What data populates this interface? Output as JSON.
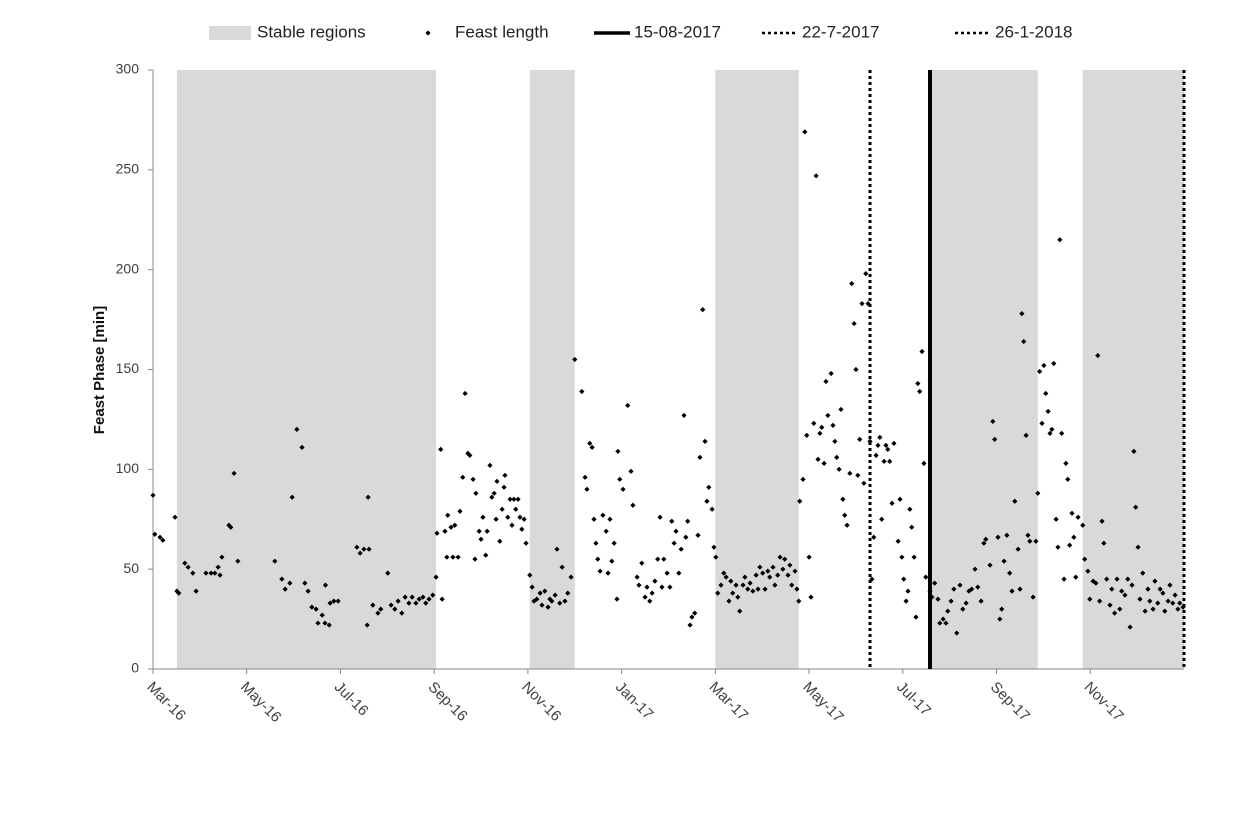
{
  "chart_data": {
    "type": "scatter",
    "y_label": "Feast Phase [min]",
    "ylim": [
      0,
      300
    ],
    "yticks": [
      0,
      50,
      100,
      150,
      200,
      250,
      300
    ],
    "xlim": [
      0,
      22
    ],
    "xticks": [
      {
        "value": 0,
        "label": "Mar-16"
      },
      {
        "value": 2,
        "label": "May-16"
      },
      {
        "value": 4,
        "label": "Jul-16"
      },
      {
        "value": 6,
        "label": "Sep-16"
      },
      {
        "value": 8,
        "label": "Nov-16"
      },
      {
        "value": 10,
        "label": "Jan-17"
      },
      {
        "value": 12,
        "label": "Mar-17"
      },
      {
        "value": 14,
        "label": "May-17"
      },
      {
        "value": 16,
        "label": "Jul-17"
      },
      {
        "value": 18,
        "label": "Sep-17"
      },
      {
        "value": 20,
        "label": "Nov-17"
      }
    ],
    "regions": {
      "name": "Stable regions",
      "color": "#d9d9d9",
      "ranges": [
        [
          0.51,
          6.04
        ],
        [
          8.04,
          9.0
        ],
        [
          12.0,
          13.78
        ],
        [
          16.58,
          18.88
        ],
        [
          19.84,
          22.0
        ]
      ]
    },
    "vlines": [
      {
        "name": "15-08-2017",
        "x": 16.58,
        "style": "solid",
        "color": "#000000"
      },
      {
        "name": "22-7-2017",
        "x": 15.3,
        "style": "dotted",
        "color": "#000000"
      },
      {
        "name": "26-1-2018",
        "x": 22,
        "style": "dotted",
        "color": "#000000"
      }
    ],
    "series": [
      {
        "name": "Feast length",
        "color": "#000000",
        "x": [
          0.0,
          0.04,
          0.15,
          0.21,
          0.47,
          0.51,
          0.55,
          0.68,
          0.75,
          0.85,
          0.92,
          1.13,
          1.24,
          1.32,
          1.39,
          1.43,
          1.47,
          1.62,
          1.66,
          1.73,
          1.81,
          2.6,
          2.75,
          2.82,
          2.92,
          2.97,
          3.07,
          3.18,
          3.24,
          3.31,
          3.39,
          3.48,
          3.52,
          3.61,
          3.67,
          3.68,
          3.76,
          3.78,
          3.86,
          3.95,
          4.35,
          4.42,
          4.5,
          4.59,
          4.61,
          4.57,
          4.69,
          4.8,
          4.86,
          5.01,
          5.08,
          5.16,
          5.23,
          5.31,
          5.38,
          5.46,
          5.53,
          5.61,
          5.68,
          5.76,
          5.82,
          5.89,
          5.97,
          6.04,
          6.06,
          6.14,
          6.17,
          6.23,
          6.27,
          6.29,
          6.36,
          6.4,
          6.44,
          6.51,
          6.55,
          6.61,
          6.66,
          6.72,
          6.76,
          6.83,
          6.87,
          6.89,
          6.96,
          7.0,
          7.04,
          7.1,
          7.13,
          7.19,
          7.23,
          7.28,
          7.32,
          7.34,
          7.4,
          7.45,
          7.49,
          7.51,
          7.57,
          7.62,
          7.66,
          7.7,
          7.74,
          7.79,
          7.83,
          7.87,
          7.92,
          7.96,
          8.04,
          8.09,
          8.13,
          8.19,
          8.26,
          8.3,
          8.36,
          8.43,
          8.47,
          8.51,
          8.58,
          8.62,
          8.68,
          8.73,
          8.79,
          8.85,
          8.92,
          9.0,
          9.15,
          9.22,
          9.26,
          9.32,
          9.37,
          9.41,
          9.45,
          9.49,
          9.54,
          9.6,
          9.67,
          9.71,
          9.75,
          9.79,
          9.84,
          9.9,
          9.92,
          9.96,
          10.03,
          10.13,
          10.2,
          10.24,
          10.33,
          10.37,
          10.43,
          10.5,
          10.54,
          10.6,
          10.65,
          10.71,
          10.77,
          10.82,
          10.86,
          10.9,
          10.97,
          11.03,
          11.07,
          11.12,
          11.16,
          11.22,
          11.27,
          11.33,
          11.37,
          11.41,
          11.46,
          11.5,
          11.56,
          11.63,
          11.67,
          11.73,
          11.78,
          11.82,
          11.86,
          11.93,
          11.97,
          12.01,
          12.05,
          12.12,
          12.18,
          12.23,
          12.29,
          12.33,
          12.37,
          12.44,
          12.48,
          12.52,
          12.59,
          12.63,
          12.69,
          12.74,
          12.8,
          12.87,
          12.91,
          12.95,
          13.01,
          13.06,
          13.12,
          13.16,
          13.23,
          13.27,
          13.33,
          13.38,
          13.44,
          13.48,
          13.55,
          13.59,
          13.63,
          13.7,
          13.74,
          13.78,
          13.8,
          13.87,
          13.91,
          13.95,
          14.0,
          14.04,
          14.1,
          14.15,
          14.19,
          14.23,
          14.27,
          14.32,
          14.36,
          14.4,
          14.47,
          14.51,
          14.55,
          14.59,
          14.64,
          14.68,
          14.72,
          14.76,
          14.81,
          14.87,
          14.91,
          14.96,
          15.0,
          15.04,
          15.08,
          15.13,
          15.17,
          15.21,
          15.26,
          15.3,
          15.34,
          15.38,
          15.43,
          15.47,
          15.51,
          15.55,
          15.6,
          15.64,
          15.68,
          15.72,
          15.77,
          15.81,
          15.9,
          15.94,
          15.98,
          16.02,
          16.07,
          16.11,
          16.15,
          16.19,
          16.24,
          16.28,
          16.32,
          16.36,
          16.41,
          16.45,
          16.49,
          16.58,
          16.62,
          16.68,
          16.75,
          16.79,
          16.86,
          16.92,
          16.96,
          17.03,
          17.09,
          17.15,
          17.22,
          17.28,
          17.35,
          17.41,
          17.47,
          17.54,
          17.6,
          17.67,
          17.73,
          17.77,
          17.86,
          17.92,
          17.96,
          18.03,
          18.07,
          18.11,
          18.16,
          18.22,
          18.28,
          18.33,
          18.39,
          18.46,
          18.5,
          18.54,
          18.58,
          18.63,
          18.67,
          18.71,
          18.78,
          18.84,
          18.88,
          18.92,
          18.97,
          19.01,
          19.05,
          19.1,
          19.14,
          19.18,
          19.22,
          19.27,
          19.31,
          19.35,
          19.39,
          19.44,
          19.48,
          19.52,
          19.56,
          19.61,
          19.65,
          19.69,
          19.74,
          19.84,
          19.88,
          19.95,
          19.99,
          20.06,
          20.12,
          20.16,
          20.2,
          20.25,
          20.29,
          20.35,
          20.42,
          20.46,
          20.52,
          20.57,
          20.63,
          20.67,
          20.74,
          20.8,
          20.85,
          20.89,
          20.93,
          20.97,
          21.02,
          21.06,
          21.12,
          21.17,
          21.23,
          21.27,
          21.34,
          21.38,
          21.44,
          21.49,
          21.55,
          21.59,
          21.66,
          21.7,
          21.76,
          21.81,
          21.87,
          21.91,
          21.98
        ],
        "values": [
          87,
          67.5,
          66,
          64.5,
          76,
          39,
          38,
          53,
          51,
          48,
          39,
          48,
          48,
          48,
          51,
          47,
          56,
          72,
          71,
          98,
          54,
          54,
          45,
          40,
          43,
          86,
          120,
          111,
          43,
          39,
          31,
          30,
          23,
          27,
          23,
          42,
          22,
          33,
          34,
          34,
          61,
          58,
          60,
          86,
          60,
          22,
          32,
          28,
          30,
          48,
          32,
          30,
          34,
          28,
          36,
          33,
          36,
          33,
          35,
          36,
          33,
          35,
          37,
          46,
          68,
          110,
          35,
          69,
          56,
          77,
          71,
          56,
          72,
          56,
          79,
          96,
          138,
          108,
          107,
          95,
          55,
          88,
          69,
          65,
          76,
          57,
          69,
          102,
          86,
          88,
          75,
          94,
          64,
          80,
          91,
          97,
          76,
          85,
          72,
          85,
          80,
          85,
          76,
          70,
          75,
          63,
          47,
          41,
          34,
          35,
          38,
          32,
          39,
          31,
          35,
          34,
          37,
          60,
          33,
          51,
          34,
          38,
          46,
          155,
          139,
          96,
          90,
          113,
          111,
          75,
          63,
          55,
          49,
          77,
          69,
          48,
          75,
          54,
          63,
          35,
          109,
          95,
          90,
          132,
          99,
          82,
          46,
          42,
          53,
          36,
          41,
          34,
          38,
          44,
          55,
          76,
          41,
          55,
          48,
          41,
          74,
          63,
          69,
          48,
          60,
          127,
          66,
          74,
          22,
          26,
          28,
          67,
          106,
          180,
          114,
          84,
          91,
          80,
          61,
          56,
          38,
          42,
          48,
          46,
          34,
          44,
          38,
          42,
          36,
          29,
          42,
          46,
          40,
          43,
          39,
          47,
          40,
          51,
          48,
          40,
          49,
          46,
          51,
          42,
          47,
          56,
          50,
          55,
          47,
          52,
          42,
          49,
          40,
          34,
          84,
          95,
          269,
          117,
          56,
          36,
          123,
          247,
          105,
          118,
          121,
          103,
          144,
          127,
          148,
          122,
          114,
          106,
          100,
          130,
          85,
          77,
          72,
          98,
          193,
          173,
          150,
          97,
          115,
          183,
          93,
          198,
          183,
          114,
          45,
          66,
          107,
          112,
          116,
          75,
          104,
          112,
          110,
          104,
          83,
          113,
          64,
          85,
          56,
          45,
          34,
          39,
          80,
          71,
          56,
          26,
          143,
          139,
          159,
          103,
          46,
          39,
          36,
          43,
          35,
          23,
          25,
          23,
          29,
          34,
          40,
          18,
          42,
          30,
          33,
          39,
          40,
          50,
          41,
          34,
          63,
          65,
          52,
          124,
          115,
          66,
          25,
          30,
          54,
          67,
          48,
          39,
          84,
          60,
          40,
          178,
          164,
          117,
          67,
          64,
          36,
          64,
          88,
          149,
          123,
          152,
          138,
          129,
          118,
          120,
          153,
          75,
          61,
          215,
          118,
          45,
          103,
          95,
          62,
          78,
          66,
          46,
          76,
          72,
          55,
          49,
          35,
          44,
          43,
          157,
          34,
          74,
          63,
          45,
          32,
          40,
          28,
          45,
          30,
          39,
          37,
          45,
          21,
          42,
          109,
          81,
          61,
          35,
          48,
          29,
          40,
          34,
          30,
          44,
          33,
          40,
          38,
          29,
          34,
          42,
          33,
          37,
          30,
          33,
          31
        ]
      }
    ]
  }
}
